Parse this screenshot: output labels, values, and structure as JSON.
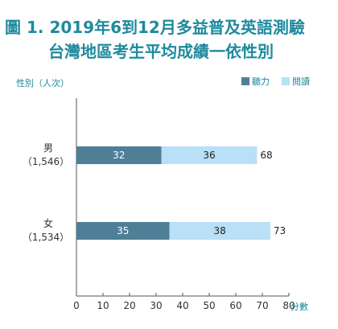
{
  "figure": {
    "title_line1": "圖 1. 2019年6到12月多益普及英語測驗",
    "title_line2": "台灣地區考生平均成績一依性別"
  },
  "chart_data": {
    "type": "bar",
    "orientation": "horizontal",
    "stacked": true,
    "title": "圖 1. 2019年6到12月多益普及英語測驗 台灣地區考生平均成績一依性別",
    "ylabel": "性別（人次）",
    "xlabel": "分數",
    "categories": [
      {
        "name": "男",
        "count": "（1,546）"
      },
      {
        "name": "女",
        "count": "（1,534）"
      }
    ],
    "series": [
      {
        "name": "聽力",
        "color": "#4e7f97",
        "label_color": "#ffffff",
        "values": [
          32,
          35
        ]
      },
      {
        "name": "閱讀",
        "color": "#b9e0f6",
        "label_color": "#222222",
        "values": [
          36,
          38
        ]
      }
    ],
    "totals": [
      68,
      73
    ],
    "xlim": [
      0,
      80
    ],
    "xticks": [
      "0",
      "10",
      "20",
      "30",
      "40",
      "50",
      "60",
      "70",
      "80"
    ],
    "grid": false,
    "legend_position": "top-right"
  }
}
